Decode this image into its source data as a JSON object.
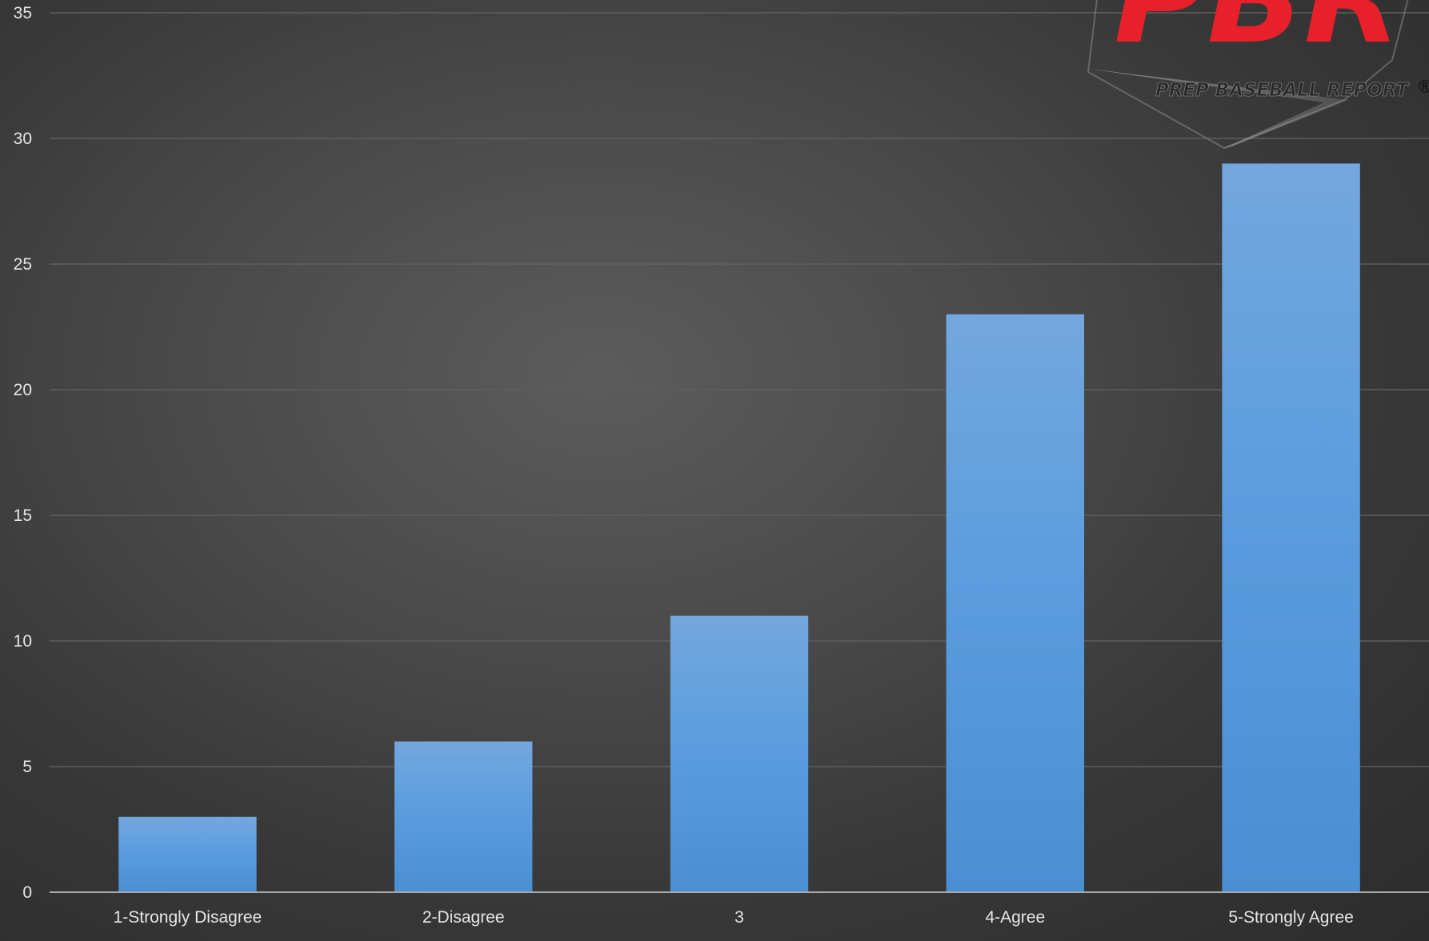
{
  "chart_data": {
    "type": "bar",
    "categories": [
      "1-Strongly Disagree",
      "2-Disagree",
      "3",
      "4-Agree",
      "5-Strongly Agree"
    ],
    "series": [
      {
        "values": [
          3,
          6,
          11,
          23,
          29
        ]
      }
    ],
    "title": "",
    "xlabel": "",
    "ylabel": "",
    "ylim": [
      0,
      35
    ],
    "yticks": [
      0,
      5,
      10,
      15,
      20,
      25,
      30,
      35
    ],
    "grid": true,
    "legend": "none"
  },
  "logo": {
    "wordmark": "PBR",
    "tagline": "PREP BASEBALL REPORT",
    "registered": "®",
    "icon": "pbr-home-plate-logo"
  },
  "colors": {
    "bar_top": "#74a7dd",
    "bar_bottom": "#4a8fd3",
    "grid": "#5e5e5e",
    "axis": "#a8a8a8",
    "logo_red": "#e8202a",
    "background_center": "#5c5c5c",
    "background_edge": "#2c2c2c"
  }
}
